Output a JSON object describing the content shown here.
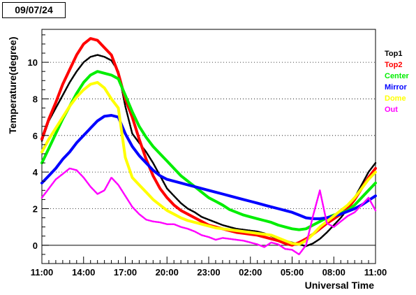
{
  "header": {
    "date": "09/07/24"
  },
  "chart_data": {
    "type": "line",
    "title": "",
    "xlabel": "Universal Time",
    "ylabel": "Temperature(degree)",
    "x_tick_labels": [
      "11:00",
      "14:00",
      "17:00",
      "20:00",
      "23:00",
      "02:00",
      "05:00",
      "08:00",
      "11:00"
    ],
    "x_tick_positions": [
      0,
      3,
      6,
      9,
      12,
      15,
      18,
      21,
      24
    ],
    "xlim": [
      0,
      24
    ],
    "ylim": [
      -1,
      11.8
    ],
    "y_ticks": [
      0,
      2,
      4,
      6,
      8,
      10
    ],
    "grid": "horizontal dotted",
    "legend_position": "right",
    "x": [
      0,
      0.5,
      1,
      1.5,
      2,
      2.5,
      3,
      3.5,
      4,
      4.5,
      5,
      5.5,
      6,
      6.5,
      7,
      7.5,
      8,
      8.5,
      9,
      9.5,
      10,
      10.5,
      11,
      11.5,
      12,
      12.5,
      13,
      13.5,
      14,
      14.5,
      15,
      15.5,
      16,
      16.5,
      17,
      17.5,
      18,
      18.5,
      19,
      19.5,
      20,
      20.5,
      21,
      21.5,
      22,
      22.5,
      23,
      23.5,
      24
    ],
    "series": [
      {
        "name": "Top1",
        "color": "#000000",
        "values": [
          5.7,
          6.8,
          7.5,
          8.2,
          8.9,
          9.5,
          10.0,
          10.3,
          10.4,
          10.3,
          10.1,
          9.5,
          7.6,
          6.1,
          5.6,
          5.1,
          4.5,
          3.8,
          3.1,
          2.7,
          2.3,
          2.0,
          1.8,
          1.55,
          1.4,
          1.25,
          1.1,
          1.0,
          0.9,
          0.85,
          0.8,
          0.75,
          0.65,
          0.5,
          0.35,
          0.25,
          0.15,
          0.05,
          -0.05,
          0.1,
          0.35,
          0.7,
          1.1,
          1.5,
          2.0,
          2.6,
          3.3,
          4.0,
          4.5
        ]
      },
      {
        "name": "Top2",
        "color": "#ff0000",
        "values": [
          5.8,
          6.9,
          7.8,
          8.8,
          9.6,
          10.4,
          11.0,
          11.3,
          11.2,
          10.8,
          10.4,
          9.4,
          8.0,
          7.0,
          5.8,
          4.7,
          3.8,
          3.1,
          2.6,
          2.2,
          1.9,
          1.7,
          1.5,
          1.3,
          1.1,
          1.0,
          0.9,
          0.8,
          0.7,
          0.65,
          0.6,
          0.55,
          0.45,
          0.35,
          0.25,
          0.1,
          0.0,
          0.15,
          0.35,
          0.6,
          0.9,
          1.2,
          1.45,
          1.7,
          2.0,
          2.5,
          3.1,
          3.7,
          4.2
        ]
      },
      {
        "name": "Center",
        "color": "#00ee00",
        "values": [
          4.5,
          5.3,
          6.1,
          6.9,
          7.6,
          8.3,
          8.9,
          9.3,
          9.5,
          9.4,
          9.3,
          9.1,
          8.2,
          7.3,
          6.5,
          5.9,
          5.4,
          5.0,
          4.6,
          4.2,
          3.8,
          3.5,
          3.2,
          2.9,
          2.6,
          2.4,
          2.2,
          1.95,
          1.8,
          1.65,
          1.55,
          1.45,
          1.35,
          1.25,
          1.1,
          1.0,
          0.9,
          0.85,
          0.9,
          1.1,
          1.3,
          1.5,
          1.65,
          1.75,
          1.9,
          2.2,
          2.6,
          3.0,
          3.4
        ]
      },
      {
        "name": "Mirror",
        "color": "#0000ff",
        "values": [
          3.4,
          3.8,
          4.2,
          4.7,
          5.1,
          5.6,
          6.0,
          6.4,
          6.8,
          7.05,
          7.1,
          7.0,
          6.1,
          5.4,
          4.9,
          4.5,
          4.1,
          3.8,
          3.6,
          3.5,
          3.4,
          3.3,
          3.2,
          3.1,
          3.0,
          2.9,
          2.8,
          2.7,
          2.6,
          2.5,
          2.4,
          2.3,
          2.2,
          2.1,
          2.0,
          1.9,
          1.8,
          1.65,
          1.5,
          1.45,
          1.45,
          1.5,
          1.6,
          1.7,
          1.85,
          2.0,
          2.2,
          2.45,
          2.7
        ]
      },
      {
        "name": "Dome",
        "color": "#ffff00",
        "values": [
          5.1,
          5.8,
          6.4,
          7.0,
          7.6,
          8.1,
          8.5,
          8.8,
          8.9,
          8.6,
          8.0,
          7.5,
          4.8,
          3.7,
          3.3,
          2.9,
          2.5,
          2.2,
          1.9,
          1.7,
          1.5,
          1.35,
          1.25,
          1.15,
          1.05,
          0.95,
          0.9,
          0.85,
          0.8,
          0.75,
          0.7,
          0.65,
          0.6,
          0.55,
          0.4,
          0.25,
          0.1,
          0.05,
          0.25,
          0.6,
          1.0,
          1.3,
          1.6,
          1.9,
          2.2,
          2.6,
          3.1,
          3.6,
          4.0
        ]
      },
      {
        "name": "Out",
        "color": "#ff00ff",
        "values": [
          2.6,
          3.1,
          3.6,
          3.9,
          4.2,
          4.1,
          3.7,
          3.2,
          2.8,
          3.0,
          3.7,
          3.3,
          2.7,
          2.1,
          1.7,
          1.4,
          1.3,
          1.25,
          1.15,
          1.15,
          1.0,
          0.9,
          0.75,
          0.55,
          0.45,
          0.3,
          0.4,
          0.35,
          0.3,
          0.25,
          0.15,
          0.05,
          -0.1,
          0.15,
          0.05,
          -0.2,
          -0.25,
          -0.5,
          0.0,
          1.6,
          3.0,
          1.2,
          1.0,
          1.3,
          1.6,
          1.8,
          2.2,
          2.6,
          1.9
        ]
      }
    ]
  }
}
